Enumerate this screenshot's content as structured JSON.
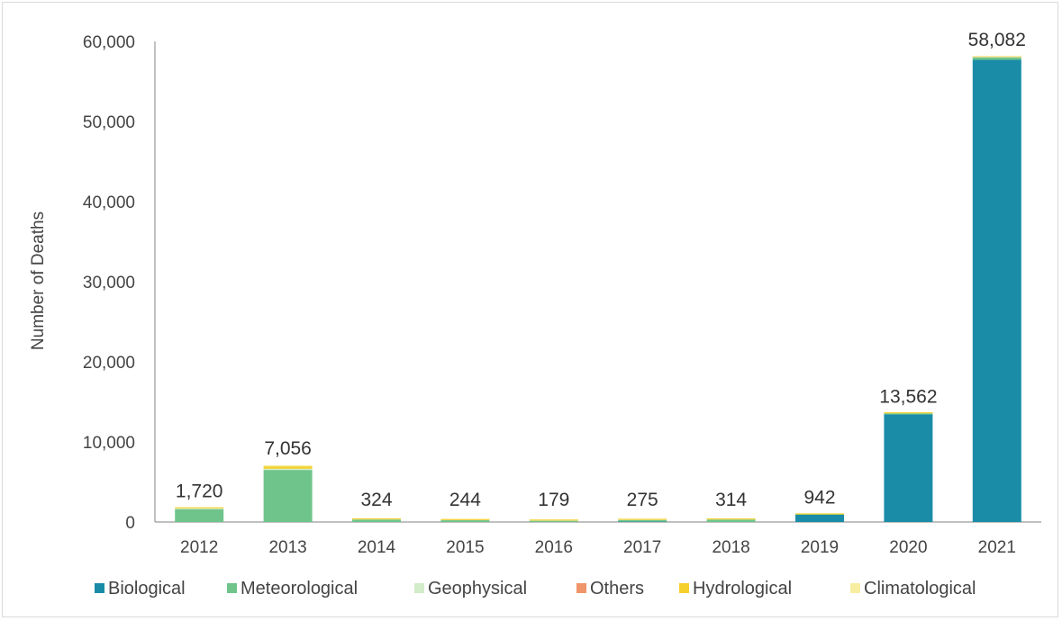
{
  "chart_data": {
    "type": "bar",
    "stacked": true,
    "title": "",
    "xlabel": "",
    "ylabel": "Number of Deaths",
    "ylim": [
      0,
      60000
    ],
    "yticks": [
      0,
      10000,
      20000,
      30000,
      40000,
      50000,
      60000
    ],
    "ytick_labels": [
      "0",
      "10,000",
      "20,000",
      "30,000",
      "40,000",
      "50,000",
      "60,000"
    ],
    "categories": [
      "2012",
      "2013",
      "2014",
      "2015",
      "2016",
      "2017",
      "2018",
      "2019",
      "2020",
      "2021"
    ],
    "totals": [
      1720,
      7056,
      324,
      244,
      179,
      275,
      314,
      942,
      13562,
      58082
    ],
    "total_labels": [
      "1,720",
      "7,056",
      "324",
      "244",
      "179",
      "275",
      "314",
      "942",
      "13,562",
      "58,082"
    ],
    "series": [
      {
        "name": "Biological",
        "color": "#1a8ca8",
        "values": [
          0,
          0,
          0,
          0,
          0,
          50,
          0,
          900,
          13450,
          57700
        ]
      },
      {
        "name": "Meteorological",
        "color": "#6fc48c",
        "values": [
          1600,
          6500,
          300,
          220,
          150,
          200,
          290,
          40,
          100,
          300
        ]
      },
      {
        "name": "Geophysical",
        "color": "#d2ebc9",
        "values": [
          100,
          150,
          20,
          20,
          25,
          20,
          20,
          0,
          10,
          50
        ]
      },
      {
        "name": "Others",
        "color": "#f0956a",
        "values": [
          0,
          0,
          0,
          0,
          0,
          0,
          0,
          0,
          0,
          10
        ]
      },
      {
        "name": "Hydrological",
        "color": "#f5cf2a",
        "values": [
          20,
          300,
          4,
          4,
          4,
          5,
          4,
          2,
          2,
          12
        ]
      },
      {
        "name": "Climatological",
        "color": "#f7eea2",
        "values": [
          0,
          106,
          0,
          0,
          0,
          0,
          0,
          0,
          0,
          10
        ]
      }
    ],
    "legend": {
      "position": "bottom"
    },
    "grid": false
  }
}
